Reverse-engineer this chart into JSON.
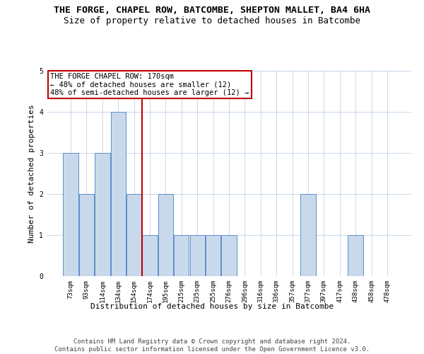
{
  "title": "THE FORGE, CHAPEL ROW, BATCOMBE, SHEPTON MALLET, BA4 6HA",
  "subtitle": "Size of property relative to detached houses in Batcombe",
  "xlabel": "Distribution of detached houses by size in Batcombe",
  "ylabel": "Number of detached properties",
  "categories": [
    "73sqm",
    "93sqm",
    "114sqm",
    "134sqm",
    "154sqm",
    "174sqm",
    "195sqm",
    "215sqm",
    "235sqm",
    "255sqm",
    "276sqm",
    "296sqm",
    "316sqm",
    "336sqm",
    "357sqm",
    "377sqm",
    "397sqm",
    "417sqm",
    "438sqm",
    "458sqm",
    "478sqm"
  ],
  "values": [
    3,
    2,
    3,
    4,
    2,
    1,
    2,
    1,
    1,
    1,
    1,
    0,
    0,
    0,
    0,
    2,
    0,
    0,
    1,
    0,
    0
  ],
  "bar_color": "#c9d9ec",
  "bar_edge_color": "#5b8fc9",
  "vline_color": "#c00000",
  "vline_index": 4.5,
  "annotation_line1": "THE FORGE CHAPEL ROW: 170sqm",
  "annotation_line2": "← 48% of detached houses are smaller (12)",
  "annotation_line3": "48% of semi-detached houses are larger (12) →",
  "annotation_box_color": "#c00000",
  "ylim": [
    0,
    5
  ],
  "yticks": [
    0,
    1,
    2,
    3,
    4,
    5
  ],
  "footer": "Contains HM Land Registry data © Crown copyright and database right 2024.\nContains public sector information licensed under the Open Government Licence v3.0.",
  "bg_color": "#ffffff",
  "grid_color": "#c8d8ea",
  "title_fontsize": 9.5,
  "subtitle_fontsize": 9,
  "axis_label_fontsize": 8,
  "tick_fontsize": 6.5,
  "annotation_fontsize": 7.5,
  "footer_fontsize": 6.5
}
